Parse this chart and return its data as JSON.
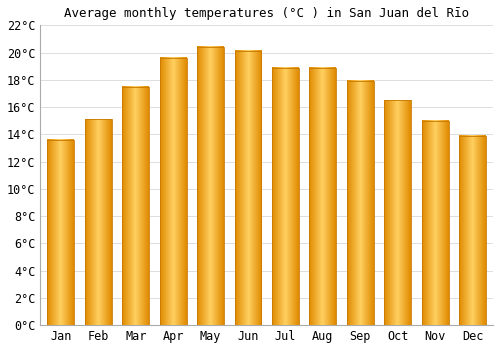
{
  "months": [
    "Jan",
    "Feb",
    "Mar",
    "Apr",
    "May",
    "Jun",
    "Jul",
    "Aug",
    "Sep",
    "Oct",
    "Nov",
    "Dec"
  ],
  "temperatures": [
    13.6,
    15.1,
    17.5,
    19.6,
    20.4,
    20.1,
    18.9,
    18.9,
    17.9,
    16.5,
    15.0,
    13.9
  ],
  "bar_color": "#F5A623",
  "bar_edge_color": "#E08000",
  "bar_gradient_light": "#FFD060",
  "title": "Average monthly temperatures (°C ) in San Juan del Rīo",
  "ylim": [
    0,
    22
  ],
  "ytick_step": 2,
  "background_color": "#ffffff",
  "plot_bg_color": "#ffffff",
  "grid_color": "#dddddd",
  "title_fontsize": 9,
  "tick_fontsize": 8.5
}
